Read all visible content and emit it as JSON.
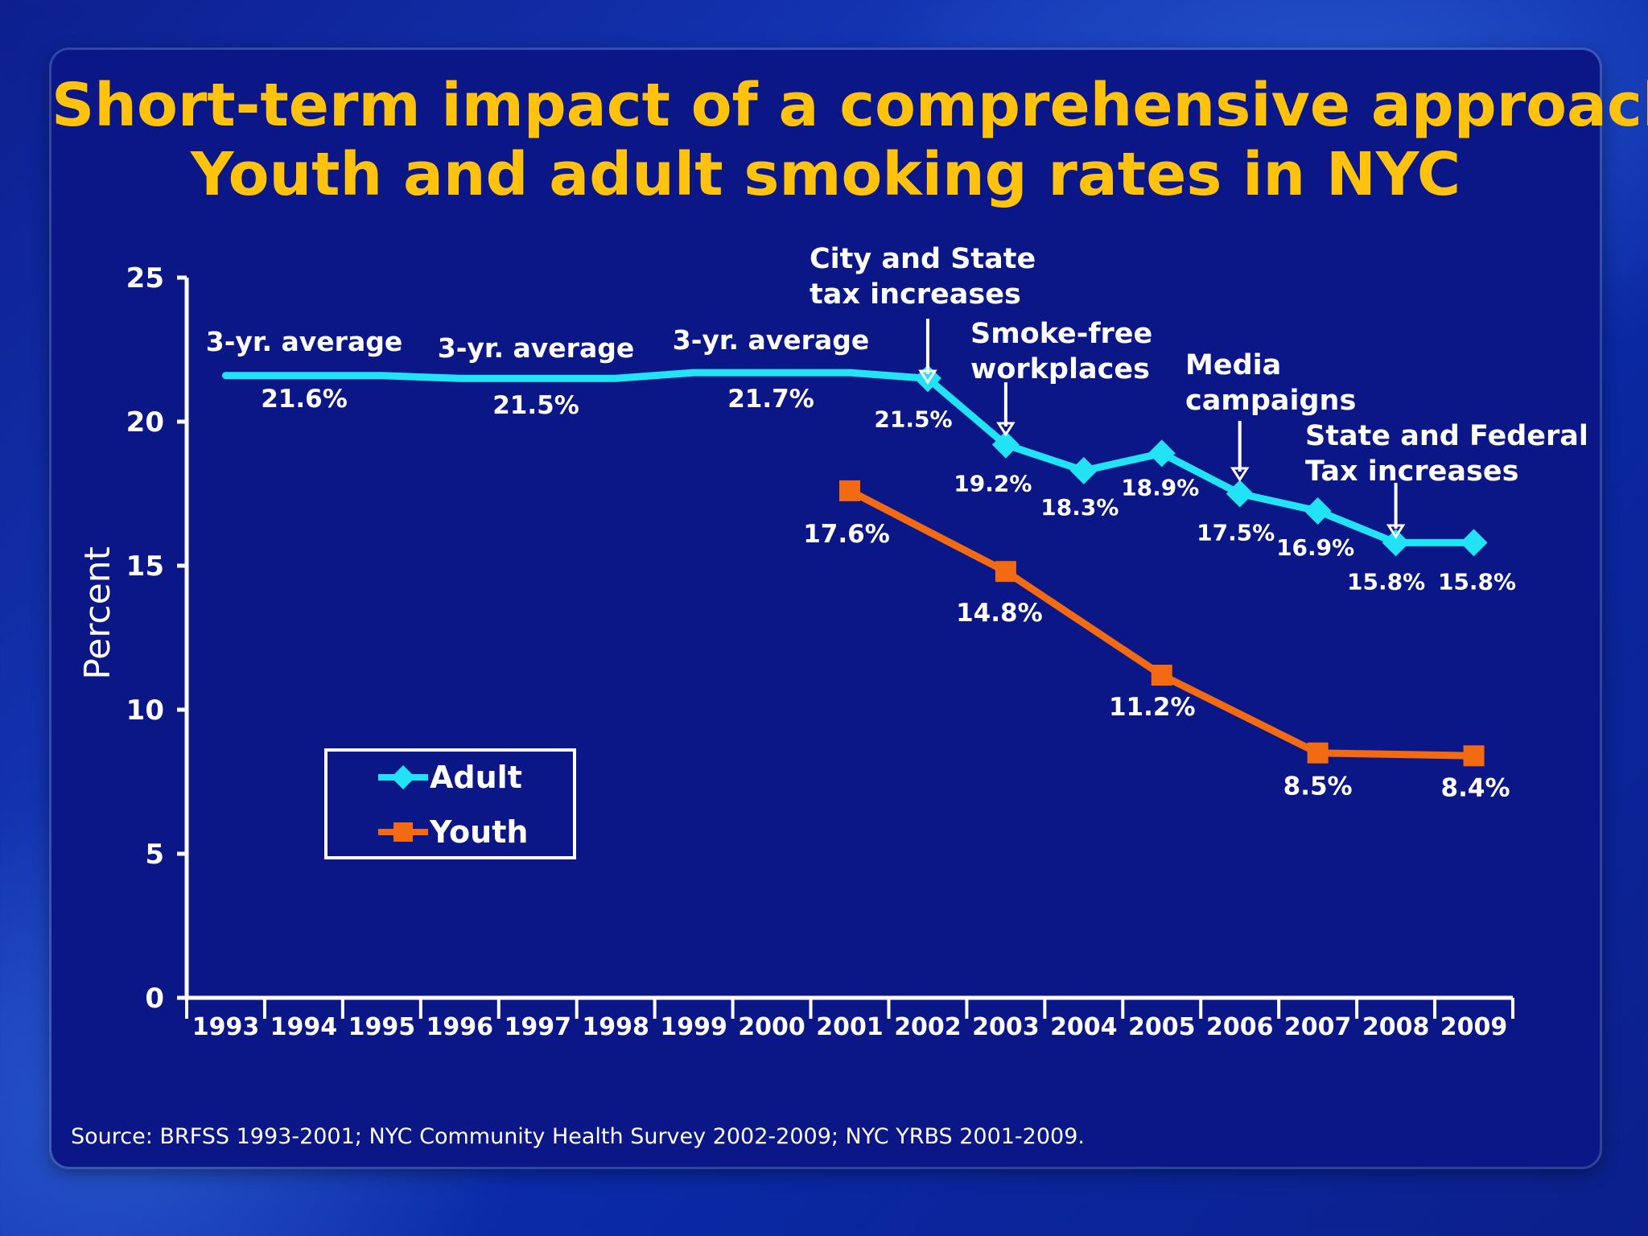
{
  "title_line1": "Short-term impact of a comprehensive approach:",
  "title_line2": "Youth and adult smoking rates in NYC",
  "source": "Source: BRFSS 1993-2001; NYC Community Health Survey  2002-2009; NYC YRBS 2001-2009.",
  "colors": {
    "adult": "#22e3f5",
    "youth": "#f26a12",
    "title": "#ffc20e",
    "text": "#ffffff"
  },
  "chart_data": {
    "type": "line",
    "ylabel": "Percent",
    "xlabel": "",
    "ylim": [
      0,
      25
    ],
    "yticks": [
      0,
      5,
      10,
      15,
      20,
      25
    ],
    "x": [
      "1993",
      "1994",
      "1995",
      "1996",
      "1997",
      "1998",
      "1999",
      "2000",
      "2001",
      "2002",
      "2003",
      "2004",
      "2005",
      "2006",
      "2007",
      "2008",
      "2009"
    ],
    "legend": {
      "position": "lower-left",
      "entries": [
        "Adult",
        "Youth"
      ]
    },
    "series": [
      {
        "name": "Adult",
        "x": [
          "1993",
          "1994",
          "1995",
          "1996",
          "1997",
          "1998",
          "1999",
          "2000",
          "2001",
          "2002",
          "2003",
          "2004",
          "2005",
          "2006",
          "2007",
          "2008",
          "2009"
        ],
        "values": [
          21.6,
          21.6,
          21.6,
          21.5,
          21.5,
          21.5,
          21.7,
          21.7,
          21.7,
          21.5,
          19.2,
          18.3,
          18.9,
          17.5,
          16.9,
          15.8,
          15.8
        ],
        "markers": [
          "2002",
          "2003",
          "2004",
          "2005",
          "2006",
          "2007",
          "2008",
          "2009"
        ]
      },
      {
        "name": "Youth",
        "x": [
          "2001",
          "2003",
          "2005",
          "2007",
          "2009"
        ],
        "values": [
          17.6,
          14.8,
          11.2,
          8.5,
          8.4
        ],
        "markers": [
          "2001",
          "2003",
          "2005",
          "2007",
          "2009"
        ]
      }
    ],
    "data_labels": [
      {
        "series": "Adult",
        "x": "2002",
        "text": "21.5%"
      },
      {
        "series": "Adult",
        "x": "2003",
        "text": "19.2%"
      },
      {
        "series": "Adult",
        "x": "2004",
        "text": "18.3%"
      },
      {
        "series": "Adult",
        "x": "2005",
        "text": "18.9%"
      },
      {
        "series": "Adult",
        "x": "2006",
        "text": "17.5%"
      },
      {
        "series": "Adult",
        "x": "2007",
        "text": "16.9%"
      },
      {
        "series": "Adult",
        "x": "2008",
        "text": "15.8%"
      },
      {
        "series": "Adult",
        "x": "2009",
        "text": "15.8%"
      },
      {
        "series": "Youth",
        "x": "2001",
        "text": "17.6%"
      },
      {
        "series": "Youth",
        "x": "2003",
        "text": "14.8%"
      },
      {
        "series": "Youth",
        "x": "2005",
        "text": "11.2%"
      },
      {
        "series": "Youth",
        "x": "2007",
        "text": "8.5%"
      },
      {
        "series": "Youth",
        "x": "2009",
        "text": "8.4%"
      }
    ],
    "period_averages": [
      {
        "label": "3-yr. average",
        "value": "21.6%",
        "years": [
          "1993",
          "1995"
        ]
      },
      {
        "label": "3-yr. average",
        "value": "21.5%",
        "years": [
          "1996",
          "1998"
        ]
      },
      {
        "label": "3-yr. average",
        "value": "21.7%",
        "years": [
          "1999",
          "2001"
        ]
      }
    ],
    "annotations": [
      {
        "x": "2002",
        "lines": [
          "City and State",
          "tax increases"
        ]
      },
      {
        "x": "2003",
        "lines": [
          "Smoke-free",
          "workplaces"
        ]
      },
      {
        "x": "2006",
        "lines": [
          "Media",
          "campaigns"
        ]
      },
      {
        "x": "2008",
        "lines": [
          "State and Federal",
          "Tax increases"
        ]
      }
    ]
  }
}
